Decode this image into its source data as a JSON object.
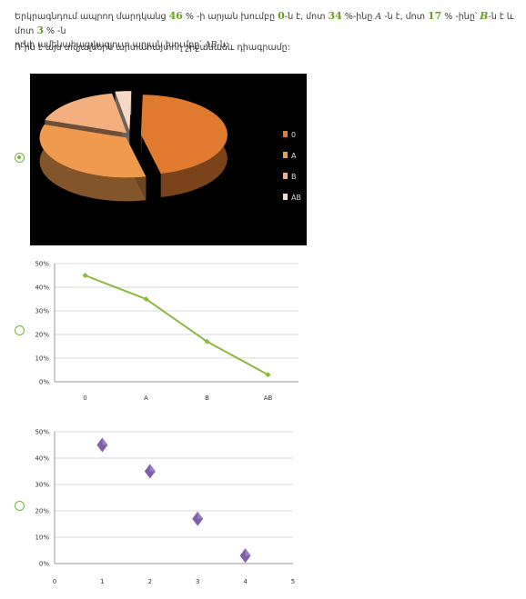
{
  "question": {
    "t1": "Երկրագնդում ապրող մարդկանց ",
    "n1": "46",
    "t2": " % -ի արյան խումբը ",
    "g0": "0",
    "t3": "-ն է, մոտ ",
    "n2": "34",
    "t4": " %-ինը ",
    "gA": "A",
    "t5": " -ն է, մոտ ",
    "n3": "17",
    "t6": " % -ինը՝ ",
    "gB": "B",
    "t7": "-ն է և մոտ ",
    "n4": "3",
    "t8": " % -ն",
    "t9": "ունի ամենահազվագյուտ արյան խումբը՝ ",
    "gAB": "AB",
    "t10": "-ն:",
    "prompt": "Ո՞րն է այս տվյալներն արտահայտող շրջանաձև դիագրամը:"
  },
  "options": [
    {
      "selected": true
    },
    {
      "selected": false
    },
    {
      "selected": false
    }
  ],
  "chart_data": [
    {
      "type": "pie",
      "categories": [
        "0",
        "A",
        "B",
        "AB"
      ],
      "values": [
        46,
        34,
        17,
        3
      ],
      "colors": [
        "#e07a2e",
        "#ef9a4c",
        "#f3b07e",
        "#f6d9c5"
      ],
      "legend_position": "right",
      "background": "#000000"
    },
    {
      "type": "line",
      "categories": [
        "0",
        "A",
        "B",
        "AB"
      ],
      "values": [
        45,
        35,
        17,
        3
      ],
      "ylim": [
        0,
        50
      ],
      "yticks": [
        "0%",
        "10%",
        "20%",
        "30%",
        "40%",
        "50%"
      ],
      "grid": true,
      "color": "#8bb83f"
    },
    {
      "type": "scatter",
      "x": [
        1,
        2,
        3,
        4
      ],
      "y": [
        45,
        35,
        17,
        3
      ],
      "xlim": [
        0,
        5
      ],
      "ylim": [
        0,
        50
      ],
      "xticks": [
        "0",
        "1",
        "2",
        "3",
        "4",
        "5"
      ],
      "yticks": [
        "0%",
        "10%",
        "20%",
        "30%",
        "40%",
        "50%"
      ],
      "grid": true,
      "color": "#7f5fa8"
    }
  ]
}
